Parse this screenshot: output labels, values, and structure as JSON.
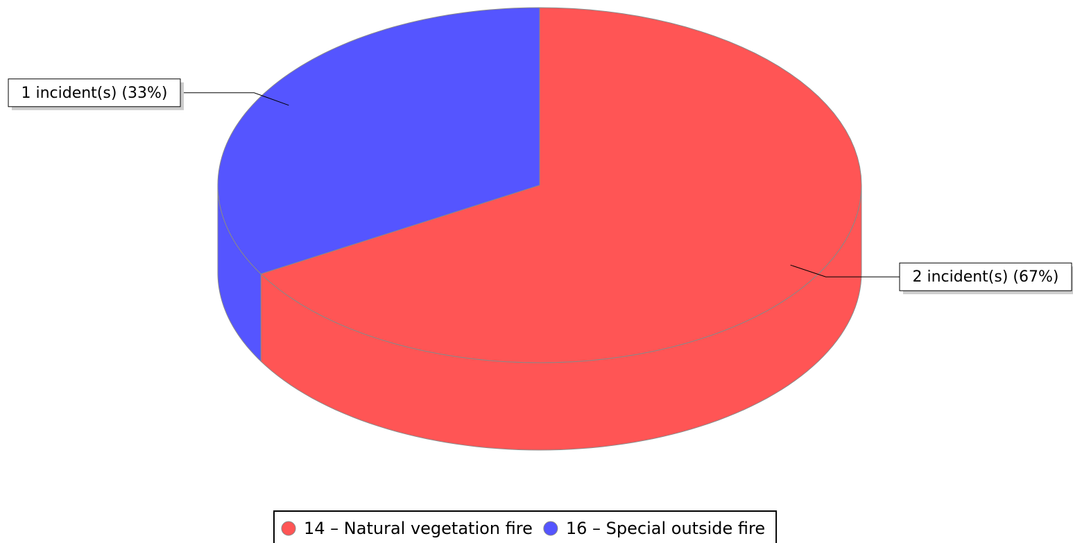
{
  "chart_data": {
    "type": "pie3d",
    "categories": [
      "14 – Natural vegetation fire",
      "16 – Special outside fire"
    ],
    "values": [
      2,
      1
    ],
    "value_labels": [
      "2 incident(s) (67%)",
      "1 incident(s) (33%)"
    ],
    "colors": [
      "#ff5555",
      "#5555ff"
    ],
    "legend": "bottom"
  }
}
